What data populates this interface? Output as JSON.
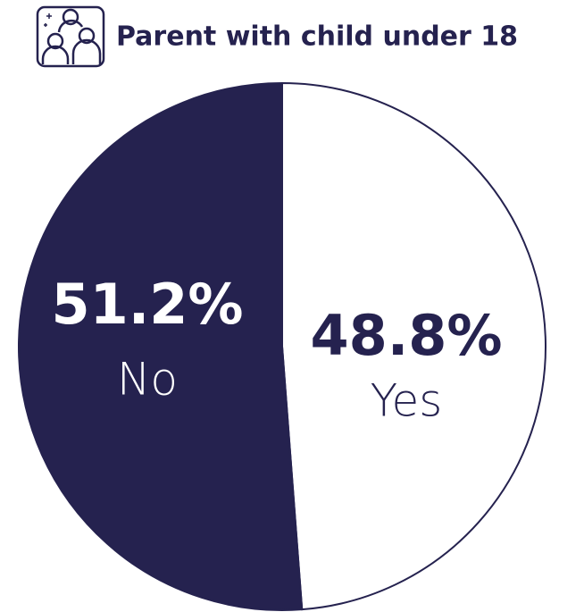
{
  "chart_data": {
    "type": "pie",
    "title": "Parent with child under 18",
    "categories": [
      "Yes",
      "No"
    ],
    "values": [
      48.8,
      51.2
    ],
    "value_labels": [
      "48.8%",
      "51.2%"
    ],
    "colors": [
      "#ffffff",
      "#25224f"
    ]
  }
}
